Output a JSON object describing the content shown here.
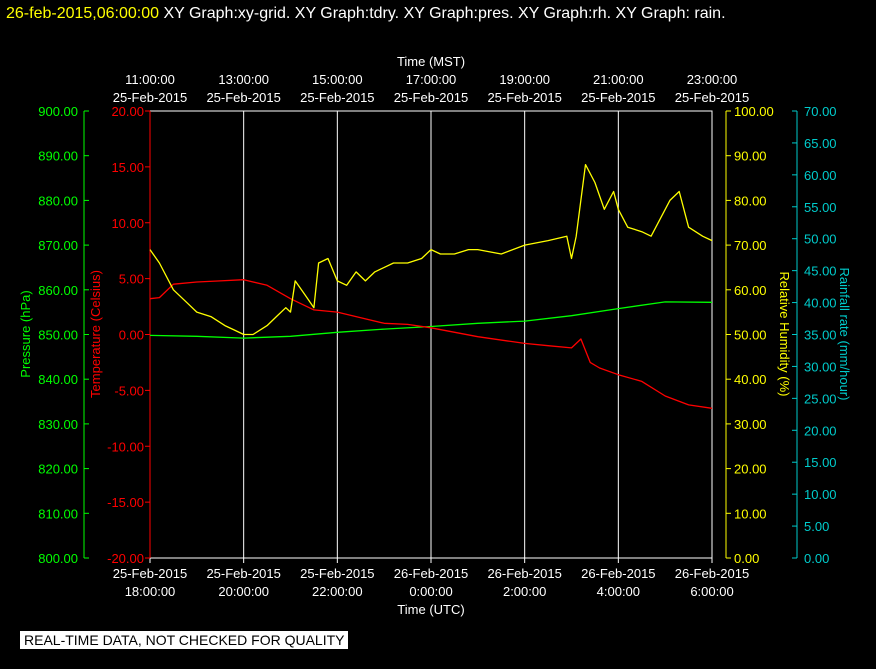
{
  "header": {
    "timestamp": "26-feb-2015,06:00:00",
    "titles": "XY Graph:xy-grid.  XY Graph:tdry.  XY Graph:pres.  XY Graph:rh.  XY Graph: rain."
  },
  "banner": "REAL-TIME DATA, NOT CHECKED FOR QUALITY",
  "colors": {
    "pressure": "#00ff00",
    "temperature": "#ff0000",
    "humidity": "#ffff00",
    "rainfall": "#00cccc",
    "grid": "#ffffff",
    "background": "#000000"
  },
  "chart_data": {
    "type": "line",
    "top_axis": {
      "title": "Time (MST)",
      "ticks": [
        {
          "time": "11:00:00",
          "date": "25-Feb-2015"
        },
        {
          "time": "13:00:00",
          "date": "25-Feb-2015"
        },
        {
          "time": "15:00:00",
          "date": "25-Feb-2015"
        },
        {
          "time": "17:00:00",
          "date": "25-Feb-2015"
        },
        {
          "time": "19:00:00",
          "date": "25-Feb-2015"
        },
        {
          "time": "21:00:00",
          "date": "25-Feb-2015"
        },
        {
          "time": "23:00:00",
          "date": "25-Feb-2015"
        }
      ]
    },
    "bottom_axis": {
      "title": "Time (UTC)",
      "ticks": [
        {
          "date": "25-Feb-2015",
          "time": "18:00:00"
        },
        {
          "date": "25-Feb-2015",
          "time": "20:00:00"
        },
        {
          "date": "25-Feb-2015",
          "time": "22:00:00"
        },
        {
          "date": "26-Feb-2015",
          "time": "0:00:00"
        },
        {
          "date": "26-Feb-2015",
          "time": "2:00:00"
        },
        {
          "date": "26-Feb-2015",
          "time": "4:00:00"
        },
        {
          "date": "26-Feb-2015",
          "time": "6:00:00"
        }
      ],
      "range_hours_utc": [
        18,
        30
      ]
    },
    "axes": {
      "pressure": {
        "label": "Pressure (hPa)",
        "range": [
          800,
          900
        ],
        "ticks": [
          "800.00",
          "810.00",
          "820.00",
          "830.00",
          "840.00",
          "850.00",
          "860.00",
          "870.00",
          "880.00",
          "890.00",
          "900.00"
        ]
      },
      "temperature": {
        "label": "Temperature (Celsius)",
        "range": [
          -20,
          20
        ],
        "ticks": [
          "-20.00",
          "-15.00",
          "-10.00",
          "-5.00",
          "0.00",
          "5.00",
          "10.00",
          "15.00",
          "20.00"
        ]
      },
      "humidity": {
        "label": "Relative Humidity (%)",
        "range": [
          0,
          100
        ],
        "ticks": [
          "0.00",
          "10.00",
          "20.00",
          "30.00",
          "40.00",
          "50.00",
          "60.00",
          "70.00",
          "80.00",
          "90.00",
          "100.00"
        ]
      },
      "rainfall": {
        "label": "Rainfall rate (mm/hour)",
        "range": [
          0,
          70
        ],
        "ticks": [
          "0.00",
          "5.00",
          "10.00",
          "15.00",
          "20.00",
          "25.00",
          "30.00",
          "35.00",
          "40.00",
          "45.00",
          "50.00",
          "55.00",
          "60.00",
          "65.00",
          "70.00"
        ]
      }
    },
    "series": [
      {
        "name": "Pressure",
        "axis": "pressure",
        "x": [
          18.0,
          19.0,
          20.0,
          21.0,
          22.0,
          23.0,
          24.0,
          25.0,
          26.0,
          27.0,
          28.0,
          29.0,
          30.0
        ],
        "y": [
          849.8,
          849.6,
          849.2,
          849.6,
          850.5,
          851.2,
          851.8,
          852.5,
          853.0,
          854.2,
          855.8,
          857.3,
          857.2
        ]
      },
      {
        "name": "Temperature",
        "axis": "temperature",
        "x": [
          18.0,
          18.2,
          18.5,
          19.0,
          19.5,
          20.0,
          20.5,
          21.0,
          21.5,
          22.0,
          22.5,
          23.0,
          23.5,
          24.0,
          25.0,
          26.0,
          26.5,
          27.0,
          27.2,
          27.4,
          27.6,
          28.0,
          28.5,
          29.0,
          29.5,
          30.0
        ],
        "y": [
          3.2,
          3.3,
          4.5,
          4.7,
          4.8,
          4.9,
          4.4,
          3.2,
          2.2,
          2.0,
          1.5,
          1.0,
          0.9,
          0.6,
          -0.2,
          -0.8,
          -1.0,
          -1.2,
          -0.4,
          -2.5,
          -3.0,
          -3.6,
          -4.2,
          -5.5,
          -6.3,
          -6.6
        ]
      },
      {
        "name": "Relative Humidity",
        "axis": "humidity",
        "x": [
          18.0,
          18.2,
          18.5,
          18.8,
          19.0,
          19.3,
          19.6,
          19.8,
          20.0,
          20.2,
          20.5,
          20.7,
          20.9,
          21.0,
          21.1,
          21.3,
          21.5,
          21.6,
          21.8,
          22.0,
          22.2,
          22.4,
          22.6,
          22.8,
          23.0,
          23.2,
          23.5,
          23.8,
          24.0,
          24.2,
          24.5,
          24.8,
          25.0,
          25.5,
          26.0,
          26.5,
          26.9,
          27.0,
          27.1,
          27.3,
          27.5,
          27.7,
          27.9,
          28.0,
          28.2,
          28.5,
          28.7,
          28.9,
          29.1,
          29.3,
          29.5,
          29.8,
          30.0
        ],
        "y": [
          69,
          66,
          60,
          57,
          55,
          54,
          52,
          51,
          50,
          50,
          52,
          54,
          56,
          55,
          62,
          59,
          56,
          66,
          67,
          62,
          61,
          64,
          62,
          64,
          65,
          66,
          66,
          67,
          69,
          68,
          68,
          69,
          69,
          68,
          70,
          71,
          72,
          67,
          72,
          88,
          84,
          78,
          82,
          78,
          74,
          73,
          72,
          76,
          80,
          82,
          74,
          72,
          71
        ]
      },
      {
        "name": "Rainfall",
        "axis": "rainfall",
        "x": [],
        "y": []
      }
    ]
  }
}
